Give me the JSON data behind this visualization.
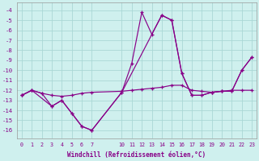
{
  "background_color": "#cff0ee",
  "grid_color": "#aad8d5",
  "line_color": "#880088",
  "xlabel": "Windchill (Refroidissement éolien,°C)",
  "xlabels": [
    "0",
    "1",
    "2",
    "3",
    "4",
    "5",
    "6",
    "7",
    "",
    "",
    "10",
    "11",
    "12",
    "13",
    "14",
    "15",
    "16",
    "17",
    "18",
    "19",
    "20",
    "21",
    "22",
    "23"
  ],
  "ylim": [
    -16.8,
    -3.2
  ],
  "yticks": [
    -4,
    -5,
    -6,
    -7,
    -8,
    -9,
    -10,
    -11,
    -12,
    -13,
    -14,
    -15,
    -16
  ],
  "line1_xi": [
    0,
    1,
    2,
    3,
    4,
    5,
    6,
    7,
    10,
    11,
    12,
    13,
    14,
    15,
    16,
    17,
    18,
    19,
    20,
    21,
    22,
    23
  ],
  "line1_yi": [
    -12.5,
    -12.0,
    -12.3,
    -13.6,
    -13.0,
    -14.3,
    -15.6,
    -16.0,
    -12.2,
    -9.3,
    -4.2,
    -6.4,
    -4.5,
    -5.0,
    -10.3,
    -12.5,
    -12.5,
    -12.2,
    -12.1,
    -12.1,
    -10.0,
    -8.7
  ],
  "line2_xi": [
    0,
    1,
    2,
    3,
    4,
    5,
    6,
    7,
    10,
    11,
    12,
    13,
    14,
    15,
    16,
    17,
    18,
    19,
    20,
    21,
    22,
    23
  ],
  "line2_yi": [
    -12.5,
    -12.0,
    -12.3,
    -12.5,
    -12.6,
    -12.5,
    -12.3,
    -12.2,
    -12.1,
    -12.0,
    -11.9,
    -11.8,
    -11.7,
    -11.5,
    -11.5,
    -12.0,
    -12.1,
    -12.2,
    -12.1,
    -12.0,
    -12.0,
    -12.0
  ],
  "line3_xi": [
    0,
    1,
    3,
    4,
    5,
    6,
    7,
    10,
    14,
    15,
    16,
    17,
    18,
    19,
    20,
    21,
    22,
    23
  ],
  "line3_yi": [
    -12.5,
    -12.0,
    -13.6,
    -13.0,
    -14.3,
    -15.6,
    -16.0,
    -12.2,
    -4.5,
    -5.0,
    -10.3,
    -12.5,
    -12.5,
    -12.2,
    -12.1,
    -12.1,
    -10.0,
    -8.7
  ]
}
